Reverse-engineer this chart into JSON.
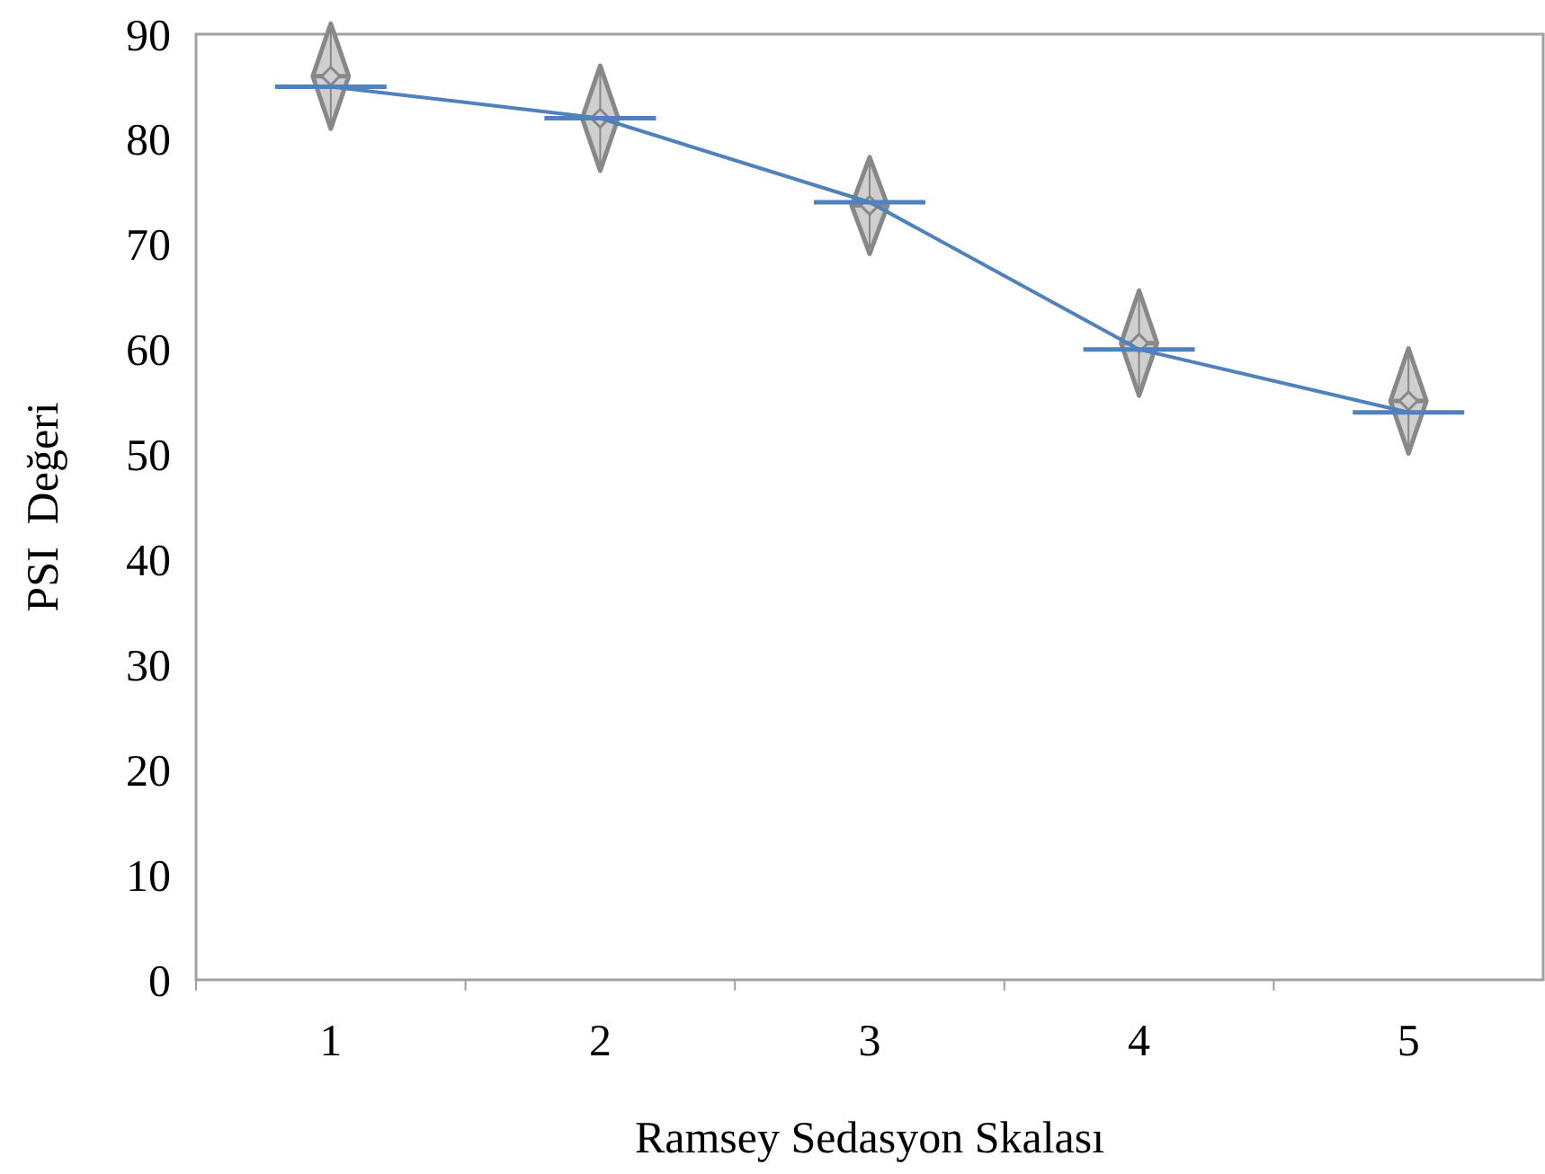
{
  "chart_data": {
    "type": "line",
    "xlabel": "Ramsey Sedasyon Skalası",
    "ylabel": "PSI  Değeri",
    "categories": [
      "1",
      "2",
      "3",
      "4",
      "5"
    ],
    "ylim": [
      0,
      90
    ],
    "yticks": [
      0,
      10,
      20,
      30,
      40,
      50,
      60,
      70,
      80,
      90
    ],
    "grid": false,
    "series": [
      {
        "color": "#4f81bd",
        "marker": "none",
        "values": [
          85,
          82,
          74,
          60,
          54
        ]
      },
      {
        "type": "scatter",
        "color": "#888888",
        "marker": "diamond",
        "values": [
          86,
          82,
          73.7,
          60.6,
          55.1
        ],
        "errors": [
          5,
          5,
          4.6,
          5,
          5
        ]
      }
    ]
  }
}
